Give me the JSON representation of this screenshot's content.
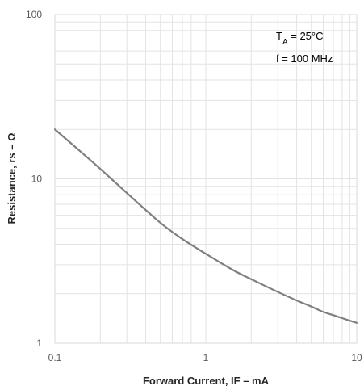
{
  "chart_data": {
    "type": "line",
    "x_scale": "log",
    "y_scale": "log",
    "xlim": [
      0.1,
      10
    ],
    "ylim": [
      1,
      100
    ],
    "xlabel": "Forward Current, IF – mA",
    "ylabel": "Resistance, rs – Ω",
    "x_ticks": [
      {
        "value": 0.1,
        "label": "0.1"
      },
      {
        "value": 1,
        "label": "1"
      },
      {
        "value": 10,
        "label": "10"
      }
    ],
    "y_ticks": [
      {
        "value": 1,
        "label": "1"
      },
      {
        "value": 10,
        "label": "10"
      },
      {
        "value": 100,
        "label": "100"
      }
    ],
    "grid": true,
    "annotation": {
      "line1_main": "T",
      "line1_sub": "A",
      "line1_rest": " = 25°C",
      "line2": "f = 100 MHz"
    },
    "series": [
      {
        "color": "#7f7f7f",
        "x": [
          0.1,
          0.15,
          0.2,
          0.3,
          0.5,
          0.7,
          1,
          1.5,
          2,
          3,
          4,
          5,
          6,
          7,
          8,
          10
        ],
        "y": [
          20,
          14.5,
          11.5,
          8.2,
          5.4,
          4.3,
          3.5,
          2.8,
          2.45,
          2.05,
          1.82,
          1.67,
          1.55,
          1.48,
          1.42,
          1.33
        ]
      }
    ]
  }
}
